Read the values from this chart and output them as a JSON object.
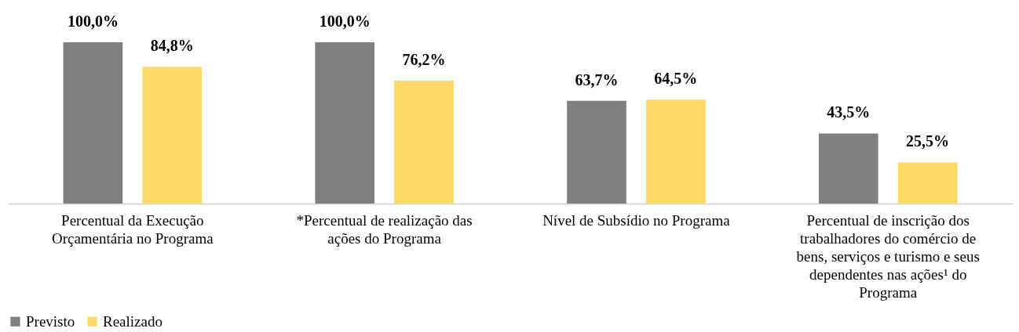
{
  "chart_data": {
    "type": "bar",
    "categories": [
      "Percentual da Execução Orçamentária no Programa",
      "*Percentual de realização das ações do Programa",
      "Nível de Subsídio no Programa",
      "Percentual de inscrição dos trabalhadores do comércio de bens, serviços e turismo e seus dependentes nas ações¹ do Programa"
    ],
    "series": [
      {
        "name": "Previsto",
        "color": "#7f7f7f",
        "values": [
          100.0,
          100.0,
          63.7,
          43.5
        ],
        "value_labels": [
          "100,0%",
          "100,0%",
          "63,7%",
          "43,5%"
        ]
      },
      {
        "name": "Realizado",
        "color": "#ffd966",
        "values": [
          84.8,
          76.2,
          64.5,
          25.5
        ],
        "value_labels": [
          "84,8%",
          "76,2%",
          "64,5%",
          "25,5%"
        ]
      }
    ],
    "legend": "bottom",
    "grid": false
  }
}
